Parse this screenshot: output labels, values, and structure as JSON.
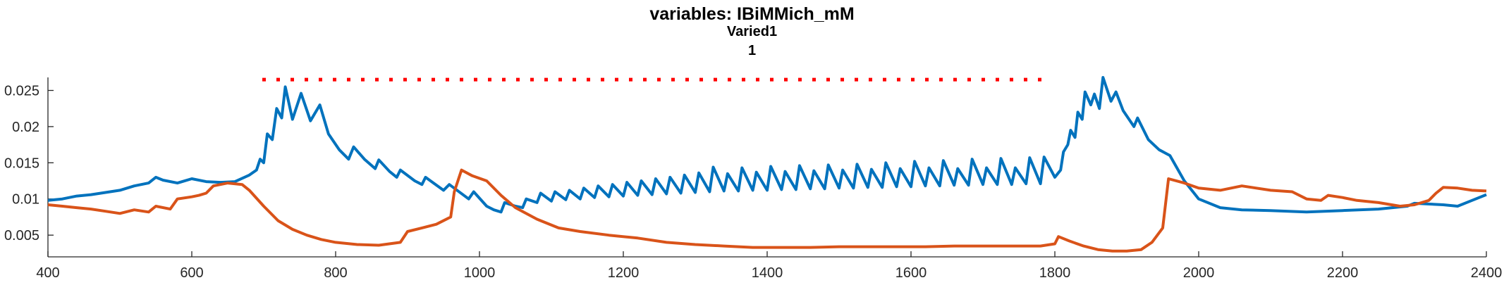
{
  "chart_data": {
    "type": "line",
    "title": "variables: IBiMMich_mM",
    "subtitle": "Varied1",
    "subtitle2": "1",
    "xlabel": "",
    "ylabel": "",
    "xlim": [
      400,
      2400
    ],
    "ylim": [
      0.002,
      0.0268
    ],
    "xticks": [
      400,
      600,
      800,
      1000,
      1200,
      1400,
      1600,
      1800,
      2000,
      2200,
      2400
    ],
    "xtick_labels": [
      "400",
      "600",
      "800",
      "1000",
      "1200",
      "1400",
      "1600",
      "1800",
      "2000",
      "2200",
      "2400"
    ],
    "yticks": [
      0.005,
      0.01,
      0.015,
      0.02,
      0.025
    ],
    "ytick_labels": [
      "0.005",
      "0.01",
      "0.015",
      "0.02",
      "0.025"
    ],
    "grid": false,
    "legend": "none",
    "series": [
      {
        "color": "#0072bd",
        "style": "solid",
        "points": [
          [
            400,
            0.0098
          ],
          [
            420,
            0.01
          ],
          [
            440,
            0.0104
          ],
          [
            460,
            0.0106
          ],
          [
            480,
            0.0109
          ],
          [
            500,
            0.0112
          ],
          [
            520,
            0.0118
          ],
          [
            540,
            0.0122
          ],
          [
            550,
            0.013
          ],
          [
            560,
            0.0126
          ],
          [
            580,
            0.0122
          ],
          [
            600,
            0.0128
          ],
          [
            620,
            0.0124
          ],
          [
            640,
            0.0123
          ],
          [
            660,
            0.0124
          ],
          [
            680,
            0.0133
          ],
          [
            690,
            0.014
          ],
          [
            695,
            0.0155
          ],
          [
            700,
            0.015
          ],
          [
            705,
            0.019
          ],
          [
            712,
            0.0182
          ],
          [
            718,
            0.0225
          ],
          [
            725,
            0.0212
          ],
          [
            730,
            0.0255
          ],
          [
            740,
            0.021
          ],
          [
            752,
            0.0246
          ],
          [
            765,
            0.0208
          ],
          [
            778,
            0.023
          ],
          [
            790,
            0.019
          ],
          [
            805,
            0.0168
          ],
          [
            818,
            0.0155
          ],
          [
            825,
            0.0172
          ],
          [
            840,
            0.0155
          ],
          [
            855,
            0.0142
          ],
          [
            860,
            0.0154
          ],
          [
            875,
            0.0138
          ],
          [
            885,
            0.013
          ],
          [
            890,
            0.014
          ],
          [
            910,
            0.0125
          ],
          [
            920,
            0.012
          ],
          [
            925,
            0.013
          ],
          [
            950,
            0.0112
          ],
          [
            958,
            0.012
          ],
          [
            985,
            0.01
          ],
          [
            992,
            0.011
          ],
          [
            1010,
            0.009
          ],
          [
            1020,
            0.0085
          ],
          [
            1030,
            0.0082
          ],
          [
            1035,
            0.0095
          ],
          [
            1050,
            0.009
          ],
          [
            1060,
            0.0088
          ],
          [
            1065,
            0.01
          ],
          [
            1080,
            0.0095
          ],
          [
            1085,
            0.0108
          ],
          [
            1100,
            0.0097
          ],
          [
            1105,
            0.011
          ],
          [
            1120,
            0.0099
          ],
          [
            1125,
            0.0112
          ],
          [
            1140,
            0.01
          ],
          [
            1145,
            0.0115
          ],
          [
            1160,
            0.0102
          ],
          [
            1165,
            0.0118
          ],
          [
            1180,
            0.0103
          ],
          [
            1185,
            0.012
          ],
          [
            1200,
            0.0104
          ],
          [
            1205,
            0.0123
          ],
          [
            1220,
            0.0105
          ],
          [
            1225,
            0.0125
          ],
          [
            1240,
            0.0106
          ],
          [
            1245,
            0.0128
          ],
          [
            1260,
            0.0107
          ],
          [
            1265,
            0.013
          ],
          [
            1280,
            0.0108
          ],
          [
            1285,
            0.0133
          ],
          [
            1300,
            0.0109
          ],
          [
            1305,
            0.0136
          ],
          [
            1320,
            0.011
          ],
          [
            1325,
            0.0144
          ],
          [
            1340,
            0.0111
          ],
          [
            1345,
            0.0135
          ],
          [
            1360,
            0.0111
          ],
          [
            1365,
            0.0143
          ],
          [
            1380,
            0.0112
          ],
          [
            1385,
            0.0137
          ],
          [
            1400,
            0.0112
          ],
          [
            1405,
            0.0145
          ],
          [
            1420,
            0.0113
          ],
          [
            1425,
            0.0138
          ],
          [
            1440,
            0.0113
          ],
          [
            1445,
            0.0146
          ],
          [
            1460,
            0.0114
          ],
          [
            1465,
            0.0139
          ],
          [
            1480,
            0.0114
          ],
          [
            1485,
            0.0147
          ],
          [
            1500,
            0.0115
          ],
          [
            1505,
            0.014
          ],
          [
            1520,
            0.0115
          ],
          [
            1525,
            0.0148
          ],
          [
            1540,
            0.0116
          ],
          [
            1545,
            0.0141
          ],
          [
            1560,
            0.0116
          ],
          [
            1565,
            0.015
          ],
          [
            1580,
            0.0117
          ],
          [
            1585,
            0.0142
          ],
          [
            1600,
            0.0117
          ],
          [
            1605,
            0.0152
          ],
          [
            1620,
            0.0118
          ],
          [
            1625,
            0.0143
          ],
          [
            1640,
            0.0118
          ],
          [
            1645,
            0.0153
          ],
          [
            1660,
            0.0119
          ],
          [
            1665,
            0.0142
          ],
          [
            1680,
            0.0119
          ],
          [
            1685,
            0.0155
          ],
          [
            1700,
            0.012
          ],
          [
            1705,
            0.0143
          ],
          [
            1720,
            0.012
          ],
          [
            1725,
            0.0156
          ],
          [
            1740,
            0.012
          ],
          [
            1745,
            0.0143
          ],
          [
            1760,
            0.0121
          ],
          [
            1765,
            0.0157
          ],
          [
            1780,
            0.0121
          ],
          [
            1785,
            0.0158
          ],
          [
            1800,
            0.013
          ],
          [
            1808,
            0.014
          ],
          [
            1812,
            0.0165
          ],
          [
            1818,
            0.0175
          ],
          [
            1822,
            0.0195
          ],
          [
            1828,
            0.0185
          ],
          [
            1832,
            0.022
          ],
          [
            1838,
            0.021
          ],
          [
            1842,
            0.0248
          ],
          [
            1850,
            0.023
          ],
          [
            1855,
            0.0245
          ],
          [
            1862,
            0.0225
          ],
          [
            1867,
            0.0268
          ],
          [
            1878,
            0.0235
          ],
          [
            1885,
            0.0248
          ],
          [
            1895,
            0.0222
          ],
          [
            1910,
            0.02
          ],
          [
            1915,
            0.0212
          ],
          [
            1930,
            0.0182
          ],
          [
            1945,
            0.0168
          ],
          [
            1960,
            0.016
          ],
          [
            1980,
            0.0125
          ],
          [
            2000,
            0.01
          ],
          [
            2030,
            0.0088
          ],
          [
            2060,
            0.0085
          ],
          [
            2100,
            0.0084
          ],
          [
            2150,
            0.0082
          ],
          [
            2200,
            0.0084
          ],
          [
            2250,
            0.0086
          ],
          [
            2290,
            0.009
          ],
          [
            2300,
            0.0094
          ],
          [
            2340,
            0.0092
          ],
          [
            2360,
            0.009
          ],
          [
            2380,
            0.0098
          ],
          [
            2400,
            0.0106
          ]
        ]
      },
      {
        "color": "#d95319",
        "style": "solid",
        "points": [
          [
            400,
            0.0092
          ],
          [
            420,
            0.009
          ],
          [
            440,
            0.0088
          ],
          [
            460,
            0.0086
          ],
          [
            480,
            0.0083
          ],
          [
            500,
            0.008
          ],
          [
            520,
            0.0085
          ],
          [
            540,
            0.0082
          ],
          [
            550,
            0.009
          ],
          [
            570,
            0.0086
          ],
          [
            580,
            0.01
          ],
          [
            600,
            0.0103
          ],
          [
            610,
            0.0105
          ],
          [
            620,
            0.0108
          ],
          [
            630,
            0.0118
          ],
          [
            650,
            0.0122
          ],
          [
            670,
            0.012
          ],
          [
            680,
            0.0112
          ],
          [
            700,
            0.009
          ],
          [
            720,
            0.007
          ],
          [
            740,
            0.0058
          ],
          [
            760,
            0.005
          ],
          [
            780,
            0.0044
          ],
          [
            800,
            0.004
          ],
          [
            830,
            0.0037
          ],
          [
            860,
            0.0036
          ],
          [
            890,
            0.004
          ],
          [
            900,
            0.0055
          ],
          [
            920,
            0.006
          ],
          [
            940,
            0.0065
          ],
          [
            960,
            0.0075
          ],
          [
            965,
            0.011
          ],
          [
            975,
            0.014
          ],
          [
            990,
            0.0132
          ],
          [
            1010,
            0.0125
          ],
          [
            1030,
            0.0105
          ],
          [
            1050,
            0.0088
          ],
          [
            1080,
            0.0072
          ],
          [
            1110,
            0.006
          ],
          [
            1140,
            0.0055
          ],
          [
            1180,
            0.005
          ],
          [
            1220,
            0.0046
          ],
          [
            1260,
            0.004
          ],
          [
            1300,
            0.0037
          ],
          [
            1340,
            0.0035
          ],
          [
            1380,
            0.0033
          ],
          [
            1420,
            0.0033
          ],
          [
            1460,
            0.0033
          ],
          [
            1500,
            0.0034
          ],
          [
            1540,
            0.0034
          ],
          [
            1580,
            0.0034
          ],
          [
            1620,
            0.0034
          ],
          [
            1660,
            0.0035
          ],
          [
            1700,
            0.0035
          ],
          [
            1740,
            0.0035
          ],
          [
            1780,
            0.0035
          ],
          [
            1800,
            0.0038
          ],
          [
            1805,
            0.0048
          ],
          [
            1820,
            0.0042
          ],
          [
            1840,
            0.0035
          ],
          [
            1860,
            0.003
          ],
          [
            1880,
            0.0028
          ],
          [
            1900,
            0.0028
          ],
          [
            1920,
            0.003
          ],
          [
            1935,
            0.004
          ],
          [
            1950,
            0.006
          ],
          [
            1958,
            0.0128
          ],
          [
            1980,
            0.0122
          ],
          [
            2000,
            0.0115
          ],
          [
            2030,
            0.0112
          ],
          [
            2060,
            0.0118
          ],
          [
            2100,
            0.0112
          ],
          [
            2130,
            0.011
          ],
          [
            2150,
            0.01
          ],
          [
            2170,
            0.0098
          ],
          [
            2180,
            0.0105
          ],
          [
            2200,
            0.0102
          ],
          [
            2220,
            0.0098
          ],
          [
            2250,
            0.0095
          ],
          [
            2280,
            0.009
          ],
          [
            2300,
            0.0092
          ],
          [
            2320,
            0.0098
          ],
          [
            2330,
            0.0108
          ],
          [
            2340,
            0.0116
          ],
          [
            2360,
            0.0115
          ],
          [
            2380,
            0.0112
          ],
          [
            2400,
            0.0111
          ]
        ]
      },
      {
        "color": "#ff0000",
        "style": "dotted",
        "points": [
          [
            698,
            0.0265
          ],
          [
            1782,
            0.0265
          ]
        ]
      }
    ]
  }
}
